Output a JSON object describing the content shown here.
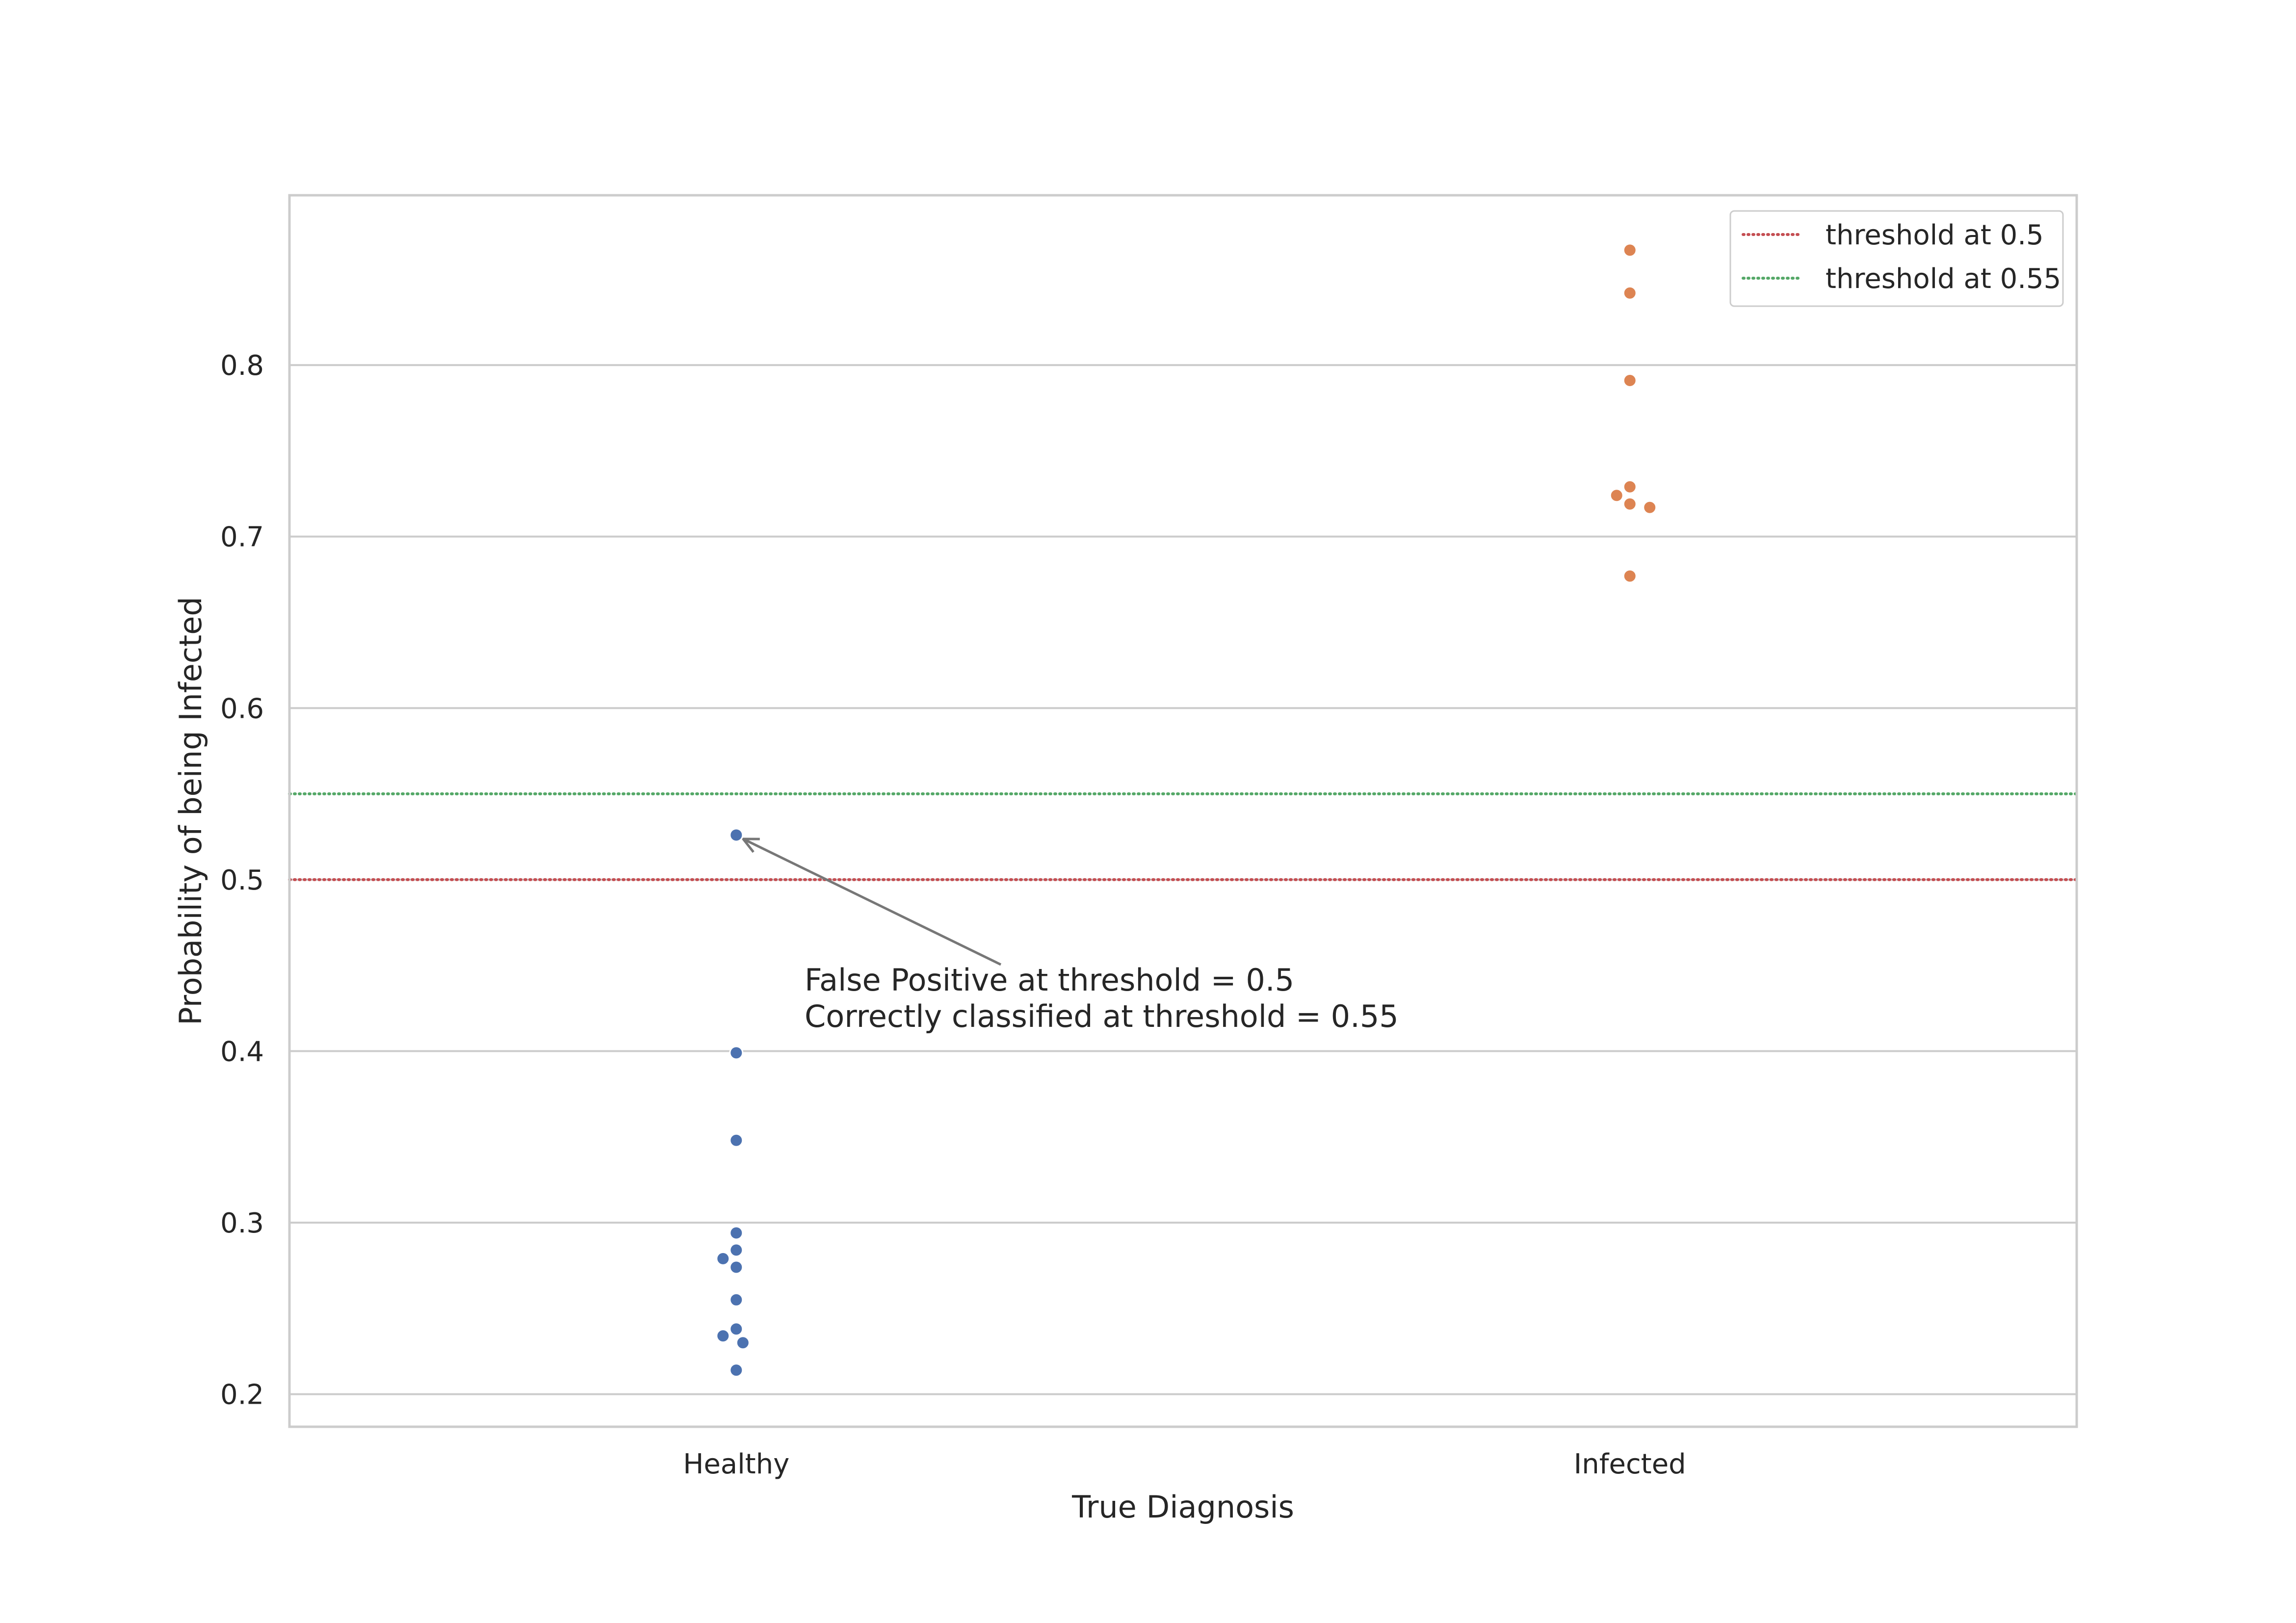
{
  "chart_data": {
    "type": "scatter",
    "subtype": "swarm",
    "title": "",
    "xlabel": "True Diagnosis",
    "ylabel": "Probability of being Infected",
    "categories": [
      "Healthy",
      "Infected"
    ],
    "ylim": [
      0.181,
      0.899
    ],
    "yticks": [
      0.2,
      0.3,
      0.4,
      0.5,
      0.6,
      0.7,
      0.8
    ],
    "ytick_labels": [
      "0.2",
      "0.3",
      "0.4",
      "0.5",
      "0.6",
      "0.7",
      "0.8"
    ],
    "grid": "horizontal",
    "series": [
      {
        "category": "Healthy",
        "color": "#4c72b0",
        "values": [
          0.526,
          0.399,
          0.348,
          0.294,
          0.284,
          0.279,
          0.274,
          0.255,
          0.238,
          0.234,
          0.23,
          0.214
        ]
      },
      {
        "category": "Infected",
        "color": "#dd8452",
        "values": [
          0.867,
          0.842,
          0.791,
          0.729,
          0.724,
          0.719,
          0.717,
          0.677
        ]
      }
    ],
    "thresholds": [
      {
        "value": 0.5,
        "label": "threshold at 0.5",
        "color": "#c44e52"
      },
      {
        "value": 0.55,
        "label": "threshold at 0.55",
        "color": "#55a868"
      }
    ],
    "legend_position": "top-right",
    "annotation": {
      "lines": [
        "False Positive at threshold = 0.5",
        "Correctly classified at threshold = 0.55"
      ],
      "target_category": "Healthy",
      "target_value": 0.526
    }
  }
}
